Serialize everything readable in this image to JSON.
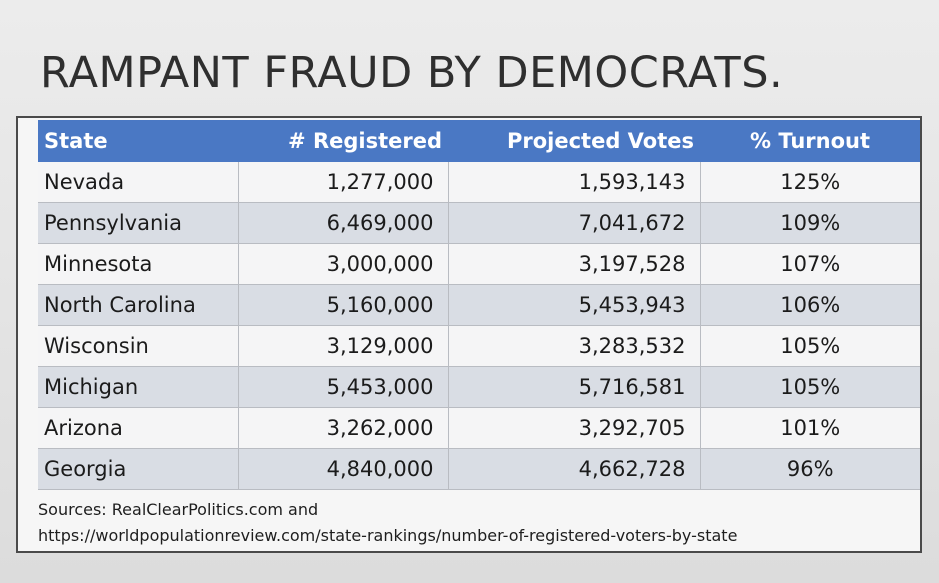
{
  "title": "RAMPANT FRAUD BY DEMOCRATS.",
  "table": {
    "headers": [
      "State",
      "# Registered",
      "Projected Votes",
      "% Turnout"
    ],
    "rows": [
      [
        "Nevada",
        "1,277,000",
        "1,593,143",
        "125%"
      ],
      [
        "Pennsylvania",
        "6,469,000",
        "7,041,672",
        "109%"
      ],
      [
        "Minnesota",
        "3,000,000",
        "3,197,528",
        "107%"
      ],
      [
        "North Carolina",
        "5,160,000",
        "5,453,943",
        "106%"
      ],
      [
        "Wisconsin",
        "3,129,000",
        "3,283,532",
        "105%"
      ],
      [
        "Michigan",
        "5,453,000",
        "5,716,581",
        "105%"
      ],
      [
        "Arizona",
        "3,262,000",
        "3,292,705",
        "101%"
      ],
      [
        "Georgia",
        "4,840,000",
        "4,662,728",
        "96%"
      ]
    ]
  },
  "sources": {
    "line1": "Sources: RealClearPolitics.com and",
    "line2": "https://worldpopulationreview.com/state-rankings/number-of-registered-voters-by-state"
  },
  "colors": {
    "header_bg": "#4a78c4",
    "row_alt_bg": "#d9dde4"
  }
}
